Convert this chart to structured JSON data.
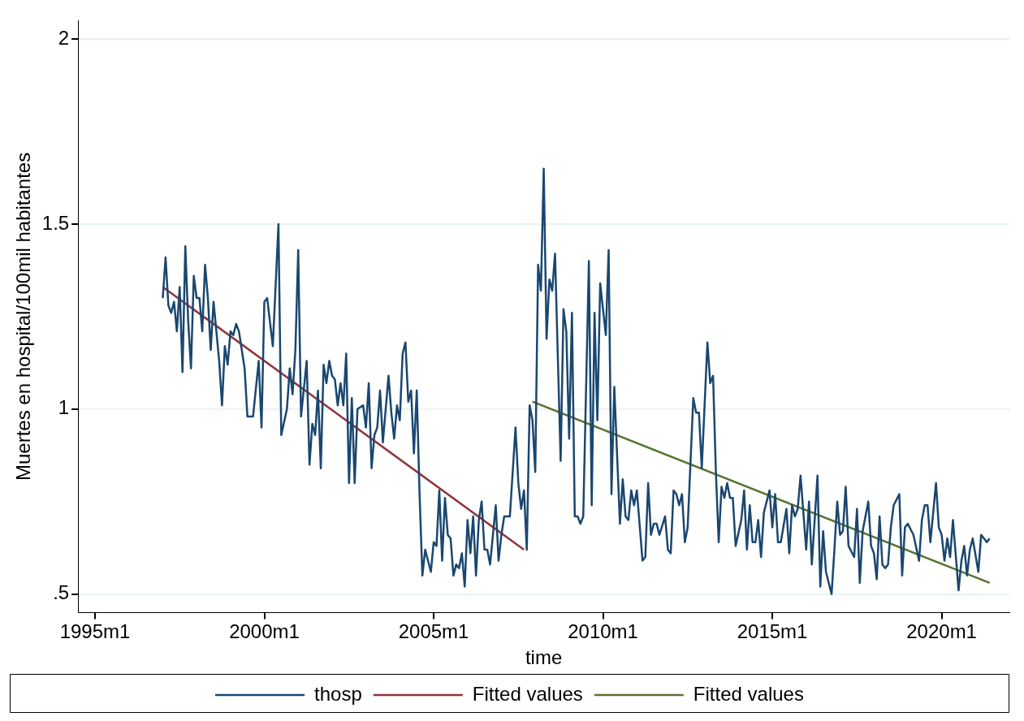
{
  "chart_data": {
    "type": "line",
    "xlabel": "time",
    "ylabel": "Muertes en hospital/100mil habitantes",
    "xlim": [
      "1994-07",
      "2022-01"
    ],
    "xticks": [
      {
        "value": "1995-01",
        "label": "1995m1"
      },
      {
        "value": "2000-01",
        "label": "2000m1"
      },
      {
        "value": "2005-01",
        "label": "2005m1"
      },
      {
        "value": "2010-01",
        "label": "2010m1"
      },
      {
        "value": "2015-01",
        "label": "2015m1"
      },
      {
        "value": "2020-01",
        "label": "2020m1"
      }
    ],
    "ylim": [
      0.45,
      2.05
    ],
    "yticks": [
      {
        "value": 0.5,
        "label": ".5"
      },
      1,
      1.5,
      2
    ],
    "grid": "y",
    "legend": "bottom",
    "marker": "none",
    "line_style": "solid",
    "series": [
      {
        "name": "thosp",
        "color": "#1a476f",
        "x": [
          "1997-01",
          "1997-02",
          "1997-03",
          "1997-04",
          "1997-05",
          "1997-06",
          "1997-07",
          "1997-08",
          "1997-09",
          "1997-10",
          "1997-11",
          "1997-12",
          "1998-01",
          "1998-02",
          "1998-03",
          "1998-04",
          "1998-05",
          "1998-06",
          "1998-07",
          "1998-09",
          "1998-10",
          "1998-11",
          "1998-12",
          "1999-01",
          "1999-02",
          "1999-03",
          "1999-04",
          "1999-06",
          "1999-07",
          "1999-09",
          "1999-11",
          "1999-12",
          "2000-01",
          "2000-02",
          "2000-04",
          "2000-06",
          "2000-07",
          "2000-09",
          "2000-10",
          "2000-11",
          "2000-12",
          "2001-01",
          "2001-02",
          "2001-04",
          "2001-05",
          "2001-06",
          "2001-07",
          "2001-08",
          "2001-09",
          "2001-10",
          "2001-11",
          "2001-12",
          "2002-01",
          "2002-02",
          "2002-03",
          "2002-04",
          "2002-05",
          "2002-06",
          "2002-07",
          "2002-08",
          "2002-09",
          "2002-10",
          "2002-12",
          "2003-01",
          "2003-02",
          "2003-03",
          "2003-04",
          "2003-05",
          "2003-06",
          "2003-07",
          "2003-09",
          "2003-10",
          "2003-11",
          "2003-12",
          "2004-01",
          "2004-02",
          "2004-03",
          "2004-04",
          "2004-05",
          "2004-06",
          "2004-07",
          "2004-08",
          "2004-09",
          "2004-10",
          "2004-12",
          "2005-01",
          "2005-02",
          "2005-03",
          "2005-04",
          "2005-05",
          "2005-06",
          "2005-07",
          "2005-08",
          "2005-09",
          "2005-10",
          "2005-11",
          "2005-12",
          "2006-01",
          "2006-02",
          "2006-03",
          "2006-04",
          "2006-05",
          "2006-06",
          "2006-07",
          "2006-08",
          "2006-09",
          "2006-10",
          "2006-11",
          "2006-12",
          "2007-01",
          "2007-02",
          "2007-04",
          "2007-06",
          "2007-07",
          "2007-08",
          "2007-09",
          "2007-10",
          "2007-11",
          "2007-12",
          "2008-01",
          "2008-02",
          "2008-03",
          "2008-04",
          "2008-05",
          "2008-06",
          "2008-07",
          "2008-08",
          "2008-10",
          "2008-11",
          "2008-12",
          "2009-01",
          "2009-02",
          "2009-03",
          "2009-04",
          "2009-05",
          "2009-06",
          "2009-08",
          "2009-09",
          "2009-10",
          "2009-11",
          "2009-12",
          "2010-02",
          "2010-03",
          "2010-04",
          "2010-05",
          "2010-07",
          "2010-08",
          "2010-09",
          "2010-10",
          "2010-11",
          "2010-12",
          "2011-01",
          "2011-03",
          "2011-04",
          "2011-05",
          "2011-06",
          "2011-07",
          "2011-08",
          "2011-09",
          "2011-11",
          "2011-12",
          "2012-01",
          "2012-02",
          "2012-03",
          "2012-04",
          "2012-05",
          "2012-06",
          "2012-07",
          "2012-09",
          "2012-10",
          "2012-11",
          "2012-12",
          "2013-02",
          "2013-03",
          "2013-04",
          "2013-05",
          "2013-06",
          "2013-07",
          "2013-08",
          "2013-09",
          "2013-10",
          "2013-11",
          "2013-12",
          "2014-02",
          "2014-03",
          "2014-04",
          "2014-05",
          "2014-06",
          "2014-07",
          "2014-08",
          "2014-09",
          "2014-10",
          "2014-12",
          "2015-01",
          "2015-02",
          "2015-03",
          "2015-04",
          "2015-06",
          "2015-07",
          "2015-08",
          "2015-09",
          "2015-10",
          "2015-11",
          "2016-01",
          "2016-02",
          "2016-03",
          "2016-05",
          "2016-06",
          "2016-07",
          "2016-08",
          "2016-10",
          "2016-11",
          "2016-12",
          "2017-01",
          "2017-02",
          "2017-03",
          "2017-04",
          "2017-06",
          "2017-07",
          "2017-08",
          "2017-09",
          "2017-11",
          "2017-12",
          "2018-01",
          "2018-02",
          "2018-03",
          "2018-04",
          "2018-05",
          "2018-06",
          "2018-07",
          "2018-08",
          "2018-10",
          "2018-11",
          "2018-12",
          "2019-01",
          "2019-03",
          "2019-05",
          "2019-06",
          "2019-07",
          "2019-08",
          "2019-09",
          "2019-11",
          "2019-12",
          "2020-01",
          "2020-02",
          "2020-03",
          "2020-04",
          "2020-05",
          "2020-07",
          "2020-08",
          "2020-09",
          "2020-10",
          "2020-11",
          "2020-12",
          "2021-02",
          "2021-03",
          "2021-05",
          "2021-06"
        ],
        "values": [
          1.3,
          1.41,
          1.28,
          1.26,
          1.29,
          1.21,
          1.33,
          1.1,
          1.44,
          1.24,
          1.11,
          1.36,
          1.3,
          1.3,
          1.21,
          1.39,
          1.3,
          1.16,
          1.29,
          1.13,
          1.01,
          1.17,
          1.12,
          1.21,
          1.2,
          1.23,
          1.21,
          1.11,
          0.98,
          0.98,
          1.13,
          0.95,
          1.29,
          1.3,
          1.17,
          1.5,
          0.93,
          1.0,
          1.11,
          1.04,
          1.16,
          1.43,
          0.98,
          1.13,
          0.85,
          0.96,
          0.93,
          1.05,
          0.84,
          1.12,
          1.07,
          1.13,
          1.09,
          1.08,
          1.01,
          1.07,
          1.01,
          1.15,
          0.8,
          1.03,
          0.8,
          1.0,
          1.01,
          0.95,
          1.07,
          0.84,
          0.93,
          0.95,
          1.05,
          0.91,
          1.09,
          0.99,
          0.92,
          1.01,
          0.97,
          1.15,
          1.18,
          1.02,
          1.05,
          0.88,
          1.05,
          0.77,
          0.55,
          0.62,
          0.56,
          0.64,
          0.63,
          0.78,
          0.59,
          0.76,
          0.66,
          0.65,
          0.55,
          0.58,
          0.57,
          0.61,
          0.52,
          0.7,
          0.61,
          0.71,
          0.55,
          0.7,
          0.75,
          0.62,
          0.62,
          0.58,
          0.66,
          0.74,
          0.59,
          0.66,
          0.71,
          0.71,
          0.95,
          0.8,
          0.73,
          0.78,
          0.62,
          1.01,
          0.97,
          0.83,
          1.39,
          1.32,
          1.65,
          1.19,
          1.35,
          1.32,
          1.42,
          0.86,
          1.27,
          1.21,
          0.92,
          1.26,
          0.71,
          0.71,
          0.69,
          0.71,
          1.4,
          0.74,
          1.26,
          0.97,
          1.34,
          1.2,
          1.43,
          0.77,
          1.06,
          0.69,
          0.81,
          0.71,
          0.7,
          0.78,
          0.74,
          0.78,
          0.59,
          0.6,
          0.8,
          0.66,
          0.69,
          0.69,
          0.66,
          0.71,
          0.62,
          0.61,
          0.78,
          0.77,
          0.74,
          0.77,
          0.64,
          0.68,
          1.03,
          0.99,
          0.99,
          0.84,
          1.18,
          1.07,
          1.09,
          0.83,
          0.64,
          0.79,
          0.76,
          0.8,
          0.76,
          0.76,
          0.63,
          0.7,
          0.78,
          0.62,
          0.74,
          0.64,
          0.64,
          0.7,
          0.6,
          0.72,
          0.78,
          0.68,
          0.77,
          0.64,
          0.64,
          0.73,
          0.61,
          0.74,
          0.71,
          0.73,
          0.82,
          0.62,
          0.75,
          0.58,
          0.82,
          0.52,
          0.67,
          0.56,
          0.5,
          0.62,
          0.75,
          0.66,
          0.67,
          0.79,
          0.63,
          0.6,
          0.73,
          0.53,
          0.67,
          0.75,
          0.63,
          0.61,
          0.54,
          0.71,
          0.58,
          0.57,
          0.58,
          0.68,
          0.74,
          0.77,
          0.55,
          0.68,
          0.69,
          0.66,
          0.59,
          0.7,
          0.74,
          0.74,
          0.64,
          0.8,
          0.68,
          0.66,
          0.59,
          0.65,
          0.6,
          0.7,
          0.51,
          0.59,
          0.63,
          0.55,
          0.62,
          0.65,
          0.56,
          0.66,
          0.64,
          0.65
        ]
      },
      {
        "name": "Fitted values",
        "color": "#90353b",
        "x": [
          "1997-01",
          "2007-09"
        ],
        "values": [
          1.33,
          0.62
        ]
      },
      {
        "name": "Fitted values",
        "color": "#55752f",
        "x": [
          "2007-12",
          "2021-06"
        ],
        "values": [
          1.02,
          0.53
        ]
      }
    ]
  }
}
